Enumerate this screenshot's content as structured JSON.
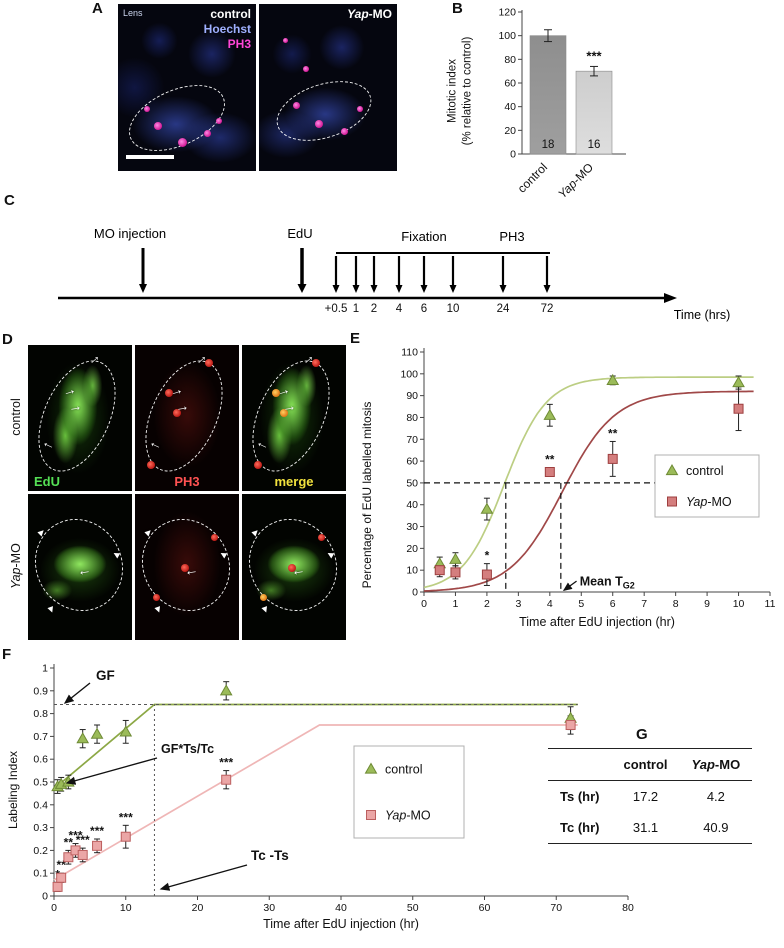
{
  "panelA": {
    "label": "A",
    "lens_label": "Lens",
    "left_image_title": "control",
    "stain_labels": [
      {
        "text": "Hoechst",
        "color": "#9fb0ff"
      },
      {
        "text": "PH3",
        "color": "#ff46d8"
      }
    ],
    "right_image_title_italic": "Yap",
    "right_image_title_rest": "-MO"
  },
  "panelB": {
    "label": "B"
  },
  "panelC": {
    "label": "C",
    "mo_label": "MO injection",
    "edu_label": "EdU",
    "fixation_label": "Fixation",
    "ph3_label": "PH3",
    "axis_label": "Time (hrs)",
    "ticks": [
      "+0.5",
      "1",
      "2",
      "4",
      "6",
      "10",
      "24",
      "72"
    ]
  },
  "panelD": {
    "label": "D",
    "row_label_1": "control",
    "row_label_2_italic": "Yap",
    "row_label_2_rest": "-MO",
    "channel_labels": [
      {
        "text": "EdU",
        "color": "#55e055"
      },
      {
        "text": "PH3",
        "color": "#ff5050"
      },
      {
        "text": "merge",
        "color": "#f2e23e"
      }
    ]
  },
  "panelE": {
    "label": "E"
  },
  "panelF": {
    "label": "F"
  },
  "panelG": {
    "label": "G",
    "table": {
      "headers": [
        "",
        "control",
        "Yap-MO"
      ],
      "rows": [
        [
          "Ts (hr)",
          "17.2",
          "4.2"
        ],
        [
          "Tc (hr)",
          "31.1",
          "40.9"
        ]
      ]
    }
  },
  "chart_data": [
    {
      "id": "mitotic-index",
      "type": "bar",
      "ylabel": "Mitotic index (% relative to control)",
      "ylabel_lines": [
        "Mitotic index",
        "(% relative to control)"
      ],
      "ylim": [
        0,
        120
      ],
      "ytick_step": 20,
      "categories": [
        "control",
        "Yap-MO"
      ],
      "values": [
        100,
        70
      ],
      "errors": [
        5,
        4
      ],
      "bar_counts": [
        "18",
        "16"
      ],
      "significance": [
        "",
        "***"
      ]
    },
    {
      "id": "edu-labelled-mitosis",
      "type": "line",
      "xlabel": "Time after EdU injection (hr)",
      "ylabel": "Percentage of EdU labelled mitosis",
      "xlim": [
        0,
        11
      ],
      "xtick_step": 1,
      "ylim": [
        0,
        110
      ],
      "ytick_step": 10,
      "series": [
        {
          "name": "control",
          "marker": "triangle",
          "fill": "#9BBB59",
          "edge": "#6E8A35",
          "line_color": "#BCCE83",
          "x": [
            0.5,
            1,
            2,
            4,
            6,
            10
          ],
          "y": [
            13,
            15,
            38,
            81,
            97,
            96
          ],
          "err": [
            3,
            3,
            5,
            5,
            2,
            3
          ],
          "sig": [
            "",
            "",
            "",
            "",
            "",
            ""
          ],
          "fit": {
            "type": "sigmoid",
            "max": 98.5,
            "x0": 2.55,
            "k": 1.5
          }
        },
        {
          "name": "Yap-MO",
          "marker": "square",
          "fill": "#D47E7E",
          "edge": "#9E3F3F",
          "line_color": "#A04848",
          "x": [
            0.5,
            1,
            2,
            4,
            6,
            10
          ],
          "y": [
            10,
            9,
            8,
            55,
            61,
            84
          ],
          "err": [
            3,
            3,
            5,
            2,
            8,
            10
          ],
          "sig": [
            "",
            "",
            "*",
            "**",
            "**",
            ""
          ],
          "fit": {
            "type": "sigmoid",
            "max": 92,
            "x0": 4.4,
            "k": 1.2
          }
        }
      ],
      "guides": {
        "h_dashed_y": 50,
        "v_dashed_x": [
          2.6,
          4.35
        ],
        "h_dash_x_end": 10.5
      },
      "annotation": {
        "text_main": "Mean T",
        "text_sub": "G2"
      },
      "legend": [
        "control",
        "Yap-MO"
      ]
    },
    {
      "id": "labeling-index",
      "type": "line",
      "xlabel": "Time after EdU injection (hr)",
      "ylabel": "Labeling Index",
      "xlim": [
        0,
        80
      ],
      "xtick_step": 10,
      "ylim": [
        0,
        1
      ],
      "ytick_step": 0.1,
      "series": [
        {
          "name": "control",
          "marker": "triangle",
          "fill": "#9BBB59",
          "edge": "#6E8A35",
          "line_color": "#8CA845",
          "x": [
            0.5,
            1,
            2,
            4,
            6,
            10,
            24,
            72
          ],
          "y": [
            0.48,
            0.49,
            0.5,
            0.69,
            0.71,
            0.72,
            0.9,
            0.78
          ],
          "err": [
            0.03,
            0.03,
            0.03,
            0.04,
            0.04,
            0.05,
            0.04,
            0.05
          ],
          "sig": [
            "",
            "",
            "",
            "",
            "",
            "",
            "",
            ""
          ],
          "line_points": [
            [
              0,
              0.47
            ],
            [
              14,
              0.84
            ],
            [
              73,
              0.84
            ]
          ]
        },
        {
          "name": "Yap-MO",
          "marker": "square",
          "fill": "#EBA6A6",
          "edge": "#BC5F5F",
          "line_color": "#EFB6B6",
          "x": [
            0.5,
            1,
            2,
            3,
            4,
            6,
            10,
            24,
            72
          ],
          "y": [
            0.04,
            0.08,
            0.17,
            0.2,
            0.18,
            0.22,
            0.26,
            0.51,
            0.75
          ],
          "err": [
            0.02,
            0.02,
            0.03,
            0.03,
            0.03,
            0.03,
            0.05,
            0.04,
            0.04
          ],
          "sig": [
            "*",
            "**",
            "**",
            "***",
            "***",
            "***",
            "***",
            "***",
            ""
          ],
          "line_points": [
            [
              0,
              0.07
            ],
            [
              37,
              0.75
            ],
            [
              73,
              0.75
            ]
          ]
        }
      ],
      "guides": {
        "h_dashed": {
          "y": 0.84,
          "x_end": 73
        },
        "v_dotted": {
          "x": 14,
          "y_end": 0.84
        }
      },
      "annotations": [
        {
          "text": "GF"
        },
        {
          "text": "GF*Ts/Tc"
        },
        {
          "text": "Tc -Ts"
        }
      ],
      "legend": [
        "control",
        "Yap-MO"
      ]
    }
  ]
}
